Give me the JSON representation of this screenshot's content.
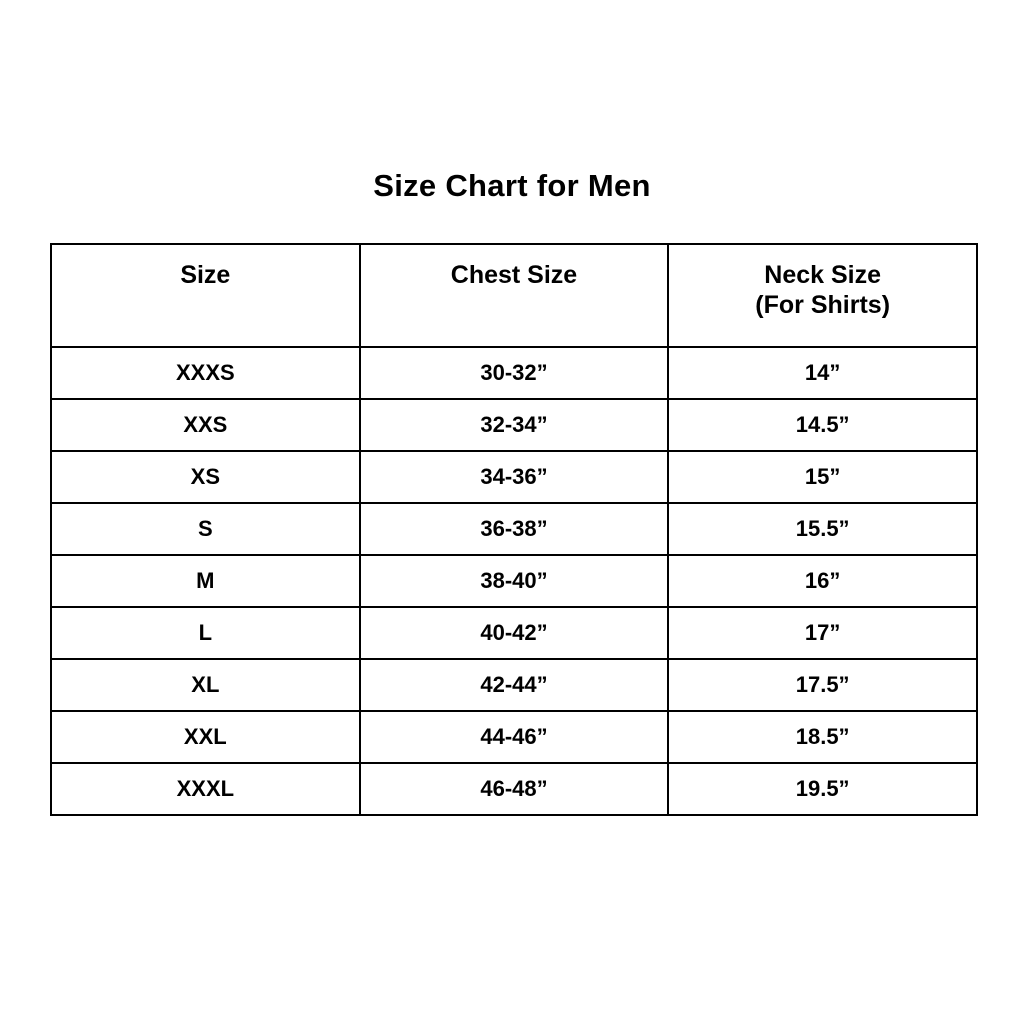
{
  "page": {
    "title": "Size Chart for Men",
    "background_color": "#ffffff",
    "text_color": "#000000",
    "border_color": "#000000"
  },
  "table": {
    "headers": {
      "size": "Size",
      "chest": "Chest Size",
      "neck_line1": "Neck Size",
      "neck_line2": "(For Shirts)"
    },
    "rows": [
      [
        "XXXS",
        "30-32”",
        "14”"
      ],
      [
        "XXS",
        "32-34”",
        "14.5”"
      ],
      [
        "XS",
        "34-36”",
        "15”"
      ],
      [
        "S",
        "36-38”",
        "15.5”"
      ],
      [
        "M",
        "38-40”",
        "16”"
      ],
      [
        "L",
        "40-42”",
        "17”"
      ],
      [
        "XL",
        "42-44”",
        "17.5”"
      ],
      [
        "XXL",
        "44-46”",
        "18.5”"
      ],
      [
        "XXXL",
        "46-48”",
        "19.5”"
      ]
    ]
  },
  "chart_data": {
    "type": "table",
    "title": "Size Chart for Men",
    "columns": [
      "Size",
      "Chest Size",
      "Neck Size (For Shirts)"
    ],
    "rows": [
      {
        "size": "XXXS",
        "chest_size": "30-32\"",
        "neck_size": "14\""
      },
      {
        "size": "XXS",
        "chest_size": "32-34\"",
        "neck_size": "14.5\""
      },
      {
        "size": "XS",
        "chest_size": "34-36\"",
        "neck_size": "15\""
      },
      {
        "size": "S",
        "chest_size": "36-38\"",
        "neck_size": "15.5\""
      },
      {
        "size": "M",
        "chest_size": "38-40\"",
        "neck_size": "16\""
      },
      {
        "size": "L",
        "chest_size": "40-42\"",
        "neck_size": "17\""
      },
      {
        "size": "XL",
        "chest_size": "42-44\"",
        "neck_size": "17.5\""
      },
      {
        "size": "XXL",
        "chest_size": "44-46\"",
        "neck_size": "18.5\""
      },
      {
        "size": "XXXL",
        "chest_size": "46-48\"",
        "neck_size": "19.5\""
      }
    ]
  }
}
